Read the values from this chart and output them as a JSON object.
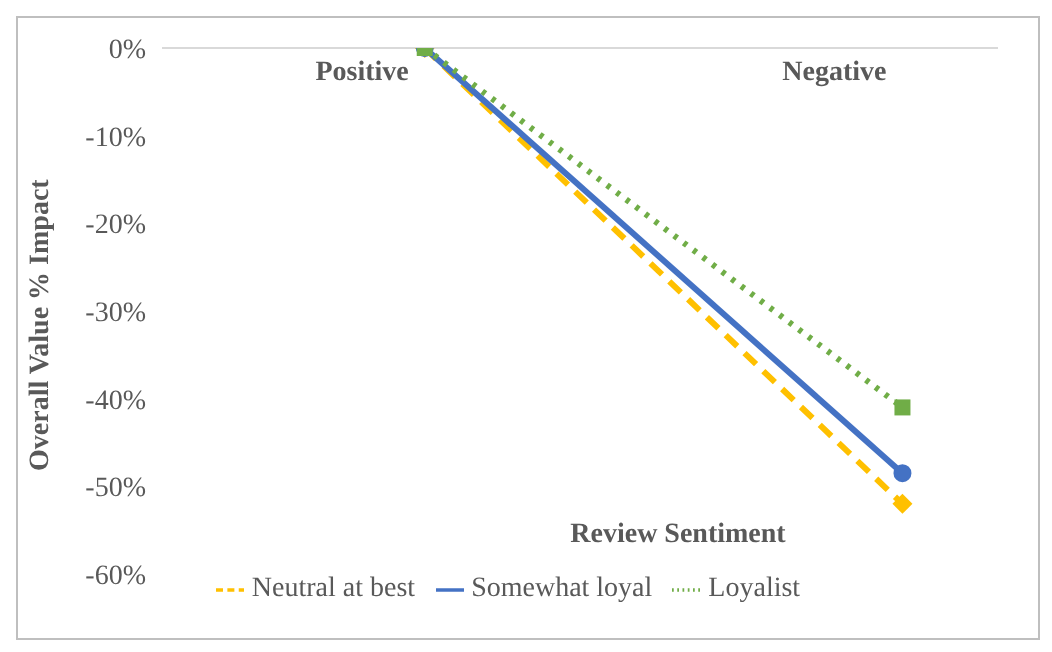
{
  "chart_data": {
    "type": "line",
    "xlabel": "Review Sentiment",
    "ylabel": "Overall Value % Impact",
    "categories": [
      "Positive",
      "Negative"
    ],
    "series": [
      {
        "name": "Neutral at best",
        "color": "#ffc000",
        "values": [
          0,
          -52
        ],
        "line_style": "dashed",
        "marker": "diamond"
      },
      {
        "name": "Somewhat loyal",
        "color": "#4472c4",
        "values": [
          0,
          -48.5
        ],
        "line_style": "solid",
        "marker": "circle"
      },
      {
        "name": "Loyalist",
        "color": "#70ad47",
        "values": [
          0,
          -41
        ],
        "line_style": "dotted",
        "marker": "square"
      }
    ],
    "ylim": [
      -60,
      0
    ],
    "yticks": [
      {
        "value": 0,
        "label": "0%"
      },
      {
        "value": -10,
        "label": "-10%"
      },
      {
        "value": -20,
        "label": "-20%"
      },
      {
        "value": -30,
        "label": "-30%"
      },
      {
        "value": -40,
        "label": "-40%"
      },
      {
        "value": -50,
        "label": "-50%"
      },
      {
        "value": -60,
        "label": "-60%"
      }
    ],
    "grid": false,
    "legend": "bottom"
  }
}
